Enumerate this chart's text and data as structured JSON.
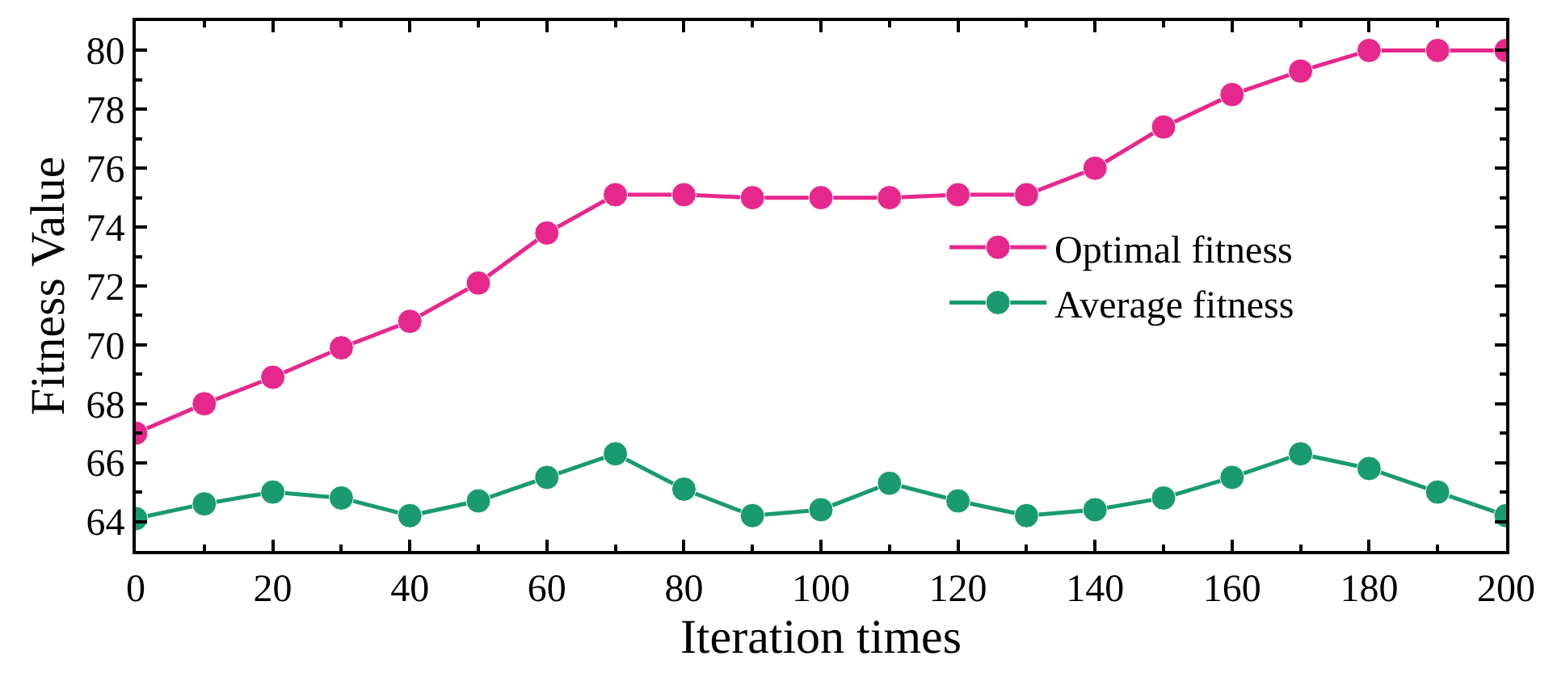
{
  "chart_data": {
    "type": "line",
    "xlabel": "Iteration times",
    "ylabel": "Fitness Value",
    "x": [
      0,
      10,
      20,
      30,
      40,
      50,
      60,
      70,
      80,
      90,
      100,
      110,
      120,
      130,
      140,
      150,
      160,
      170,
      180,
      190,
      200
    ],
    "series": [
      {
        "name": "Optimal fitness",
        "color": "#e6288c",
        "values": [
          67.0,
          68.0,
          68.9,
          69.9,
          70.8,
          72.1,
          73.8,
          75.1,
          75.1,
          75.0,
          75.0,
          75.0,
          75.1,
          75.1,
          76.0,
          77.4,
          78.5,
          79.3,
          80.0,
          80.0,
          80.0
        ]
      },
      {
        "name": "Average fitness",
        "color": "#1a9a70",
        "values": [
          64.1,
          64.6,
          65.0,
          64.8,
          64.2,
          64.7,
          65.5,
          66.3,
          65.1,
          64.2,
          64.4,
          65.3,
          64.7,
          64.2,
          64.4,
          64.8,
          65.5,
          66.3,
          65.8,
          65.0,
          64.2
        ]
      }
    ],
    "xlim": [
      0,
      200
    ],
    "xticks": [
      0,
      20,
      40,
      60,
      80,
      100,
      120,
      140,
      160,
      180,
      200
    ],
    "ylim": [
      63,
      81
    ],
    "yticks": [
      64,
      66,
      68,
      70,
      72,
      74,
      76,
      78,
      80
    ],
    "legend": "right",
    "marker": "circle",
    "line_style": "solid"
  }
}
